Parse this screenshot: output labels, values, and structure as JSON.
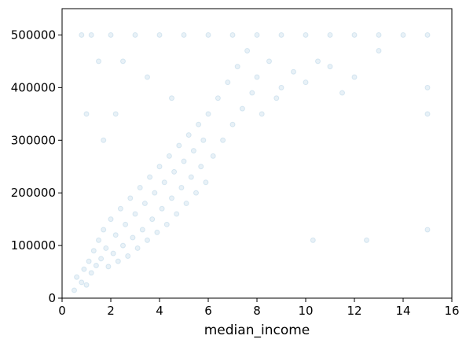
{
  "chart_data": {
    "type": "scatter",
    "title": "",
    "xlabel": "median_income",
    "ylabel": "",
    "xlim": [
      0,
      16
    ],
    "ylim": [
      0,
      550000
    ],
    "xticks": [
      0,
      2,
      4,
      6,
      8,
      10,
      12,
      14,
      16
    ],
    "yticks": [
      0,
      100000,
      200000,
      300000,
      400000,
      500000
    ],
    "xtick_labels": [
      "0",
      "2",
      "4",
      "6",
      "8",
      "10",
      "12",
      "14",
      "16"
    ],
    "ytick_labels": [
      "0",
      "100000",
      "200000",
      "300000",
      "400000",
      "500000"
    ],
    "grid": false,
    "legend": "none",
    "marker_color": "#1f77b4",
    "marker_alpha": 0.1,
    "series": [
      {
        "points": [
          [
            0.5,
            15000
          ],
          [
            0.6,
            40000
          ],
          [
            0.8,
            30000
          ],
          [
            0.9,
            55000
          ],
          [
            1.0,
            25000
          ],
          [
            1.1,
            70000
          ],
          [
            1.2,
            48000
          ],
          [
            1.3,
            90000
          ],
          [
            1.4,
            62000
          ],
          [
            1.5,
            110000
          ],
          [
            1.6,
            75000
          ],
          [
            1.7,
            130000
          ],
          [
            1.8,
            95000
          ],
          [
            1.9,
            60000
          ],
          [
            2.0,
            150000
          ],
          [
            2.1,
            85000
          ],
          [
            2.2,
            120000
          ],
          [
            2.3,
            70000
          ],
          [
            2.4,
            170000
          ],
          [
            2.5,
            100000
          ],
          [
            2.6,
            140000
          ],
          [
            2.7,
            80000
          ],
          [
            2.8,
            190000
          ],
          [
            2.9,
            115000
          ],
          [
            3.0,
            160000
          ],
          [
            3.1,
            95000
          ],
          [
            3.2,
            210000
          ],
          [
            3.3,
            130000
          ],
          [
            3.4,
            180000
          ],
          [
            3.5,
            110000
          ],
          [
            3.6,
            230000
          ],
          [
            3.7,
            150000
          ],
          [
            3.8,
            200000
          ],
          [
            3.9,
            125000
          ],
          [
            4.0,
            250000
          ],
          [
            4.1,
            170000
          ],
          [
            4.2,
            220000
          ],
          [
            4.3,
            140000
          ],
          [
            4.4,
            270000
          ],
          [
            4.5,
            190000
          ],
          [
            4.6,
            240000
          ],
          [
            4.7,
            160000
          ],
          [
            4.8,
            290000
          ],
          [
            4.9,
            210000
          ],
          [
            5.0,
            260000
          ],
          [
            5.1,
            180000
          ],
          [
            5.2,
            310000
          ],
          [
            5.3,
            230000
          ],
          [
            5.4,
            280000
          ],
          [
            5.5,
            200000
          ],
          [
            5.6,
            330000
          ],
          [
            5.7,
            250000
          ],
          [
            5.8,
            300000
          ],
          [
            5.9,
            220000
          ],
          [
            6.0,
            350000
          ],
          [
            6.2,
            270000
          ],
          [
            6.4,
            380000
          ],
          [
            6.6,
            300000
          ],
          [
            6.8,
            410000
          ],
          [
            7.0,
            330000
          ],
          [
            7.2,
            440000
          ],
          [
            7.4,
            360000
          ],
          [
            7.6,
            470000
          ],
          [
            7.8,
            390000
          ],
          [
            8.0,
            420000
          ],
          [
            8.2,
            350000
          ],
          [
            8.5,
            450000
          ],
          [
            8.8,
            380000
          ],
          [
            9.0,
            400000
          ],
          [
            9.5,
            430000
          ],
          [
            10.0,
            410000
          ],
          [
            10.3,
            110000
          ],
          [
            10.5,
            450000
          ],
          [
            11.0,
            440000
          ],
          [
            11.5,
            390000
          ],
          [
            12.0,
            420000
          ],
          [
            12.5,
            110000
          ],
          [
            13.0,
            470000
          ],
          [
            15.0,
            500001
          ],
          [
            15.0,
            400000
          ],
          [
            15.0,
            350000
          ],
          [
            15.0,
            130000
          ],
          [
            1.0,
            350000
          ],
          [
            1.5,
            450000
          ],
          [
            2.0,
            500001
          ],
          [
            3.0,
            500001
          ],
          [
            4.0,
            500001
          ],
          [
            5.0,
            500001
          ],
          [
            6.0,
            500001
          ],
          [
            7.0,
            500001
          ],
          [
            8.0,
            500001
          ],
          [
            9.0,
            500001
          ],
          [
            10.0,
            500001
          ],
          [
            11.0,
            500001
          ],
          [
            12.0,
            500001
          ],
          [
            13.0,
            500001
          ],
          [
            14.0,
            500001
          ],
          [
            1.2,
            500001
          ],
          [
            0.8,
            500001
          ],
          [
            2.5,
            450000
          ],
          [
            3.5,
            420000
          ],
          [
            4.5,
            380000
          ],
          [
            2.2,
            350000
          ],
          [
            1.7,
            300000
          ]
        ]
      }
    ]
  }
}
